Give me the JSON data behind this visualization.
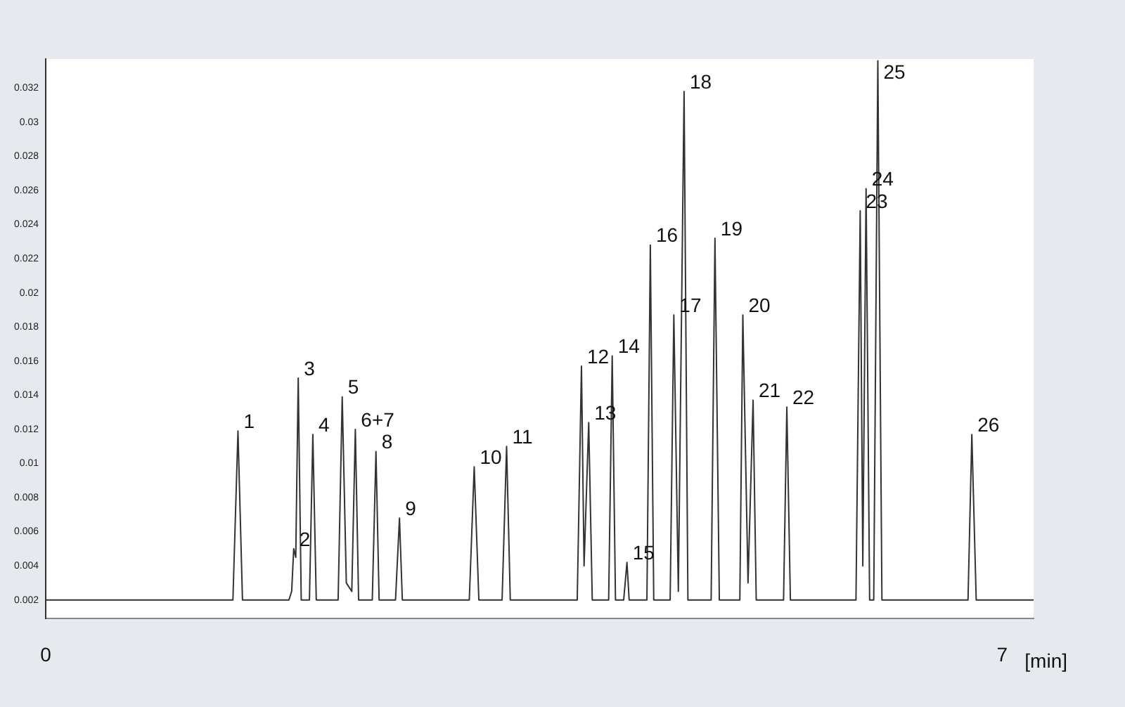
{
  "chart_data": {
    "type": "line",
    "xlabel": "[min]",
    "x": [
      0,
      1.37,
      1.407,
      1.44,
      1.78,
      1.8,
      1.815,
      1.83,
      1.848,
      1.87,
      1.93,
      1.955,
      1.98,
      2.14,
      2.17,
      2.2,
      2.24,
      2.266,
      2.29,
      2.39,
      2.417,
      2.44,
      2.56,
      2.589,
      2.61,
      3.1,
      3.136,
      3.17,
      3.34,
      3.373,
      3.4,
      3.89,
      3.921,
      3.94,
      3.974,
      4.0,
      4.12,
      4.146,
      4.17,
      4.23,
      4.254,
      4.27,
      4.4,
      4.425,
      4.45,
      4.57,
      4.597,
      4.63,
      4.672,
      4.7,
      4.87,
      4.898,
      4.93,
      5.08,
      5.102,
      5.14,
      5.177,
      5.2,
      5.4,
      5.424,
      5.45,
      5.93,
      5.961,
      5.98,
      6.004,
      6.03,
      6.06,
      6.09,
      6.12,
      6.75,
      6.778,
      6.81,
      7.23
    ],
    "series": [
      {
        "color": "#333333",
        "values": [
          0.002,
          0.002,
          0.0119,
          0.002,
          0.002,
          0.0025,
          0.005,
          0.0045,
          0.015,
          0.002,
          0.002,
          0.0117,
          0.002,
          0.002,
          0.0139,
          0.003,
          0.0025,
          0.012,
          0.002,
          0.002,
          0.0107,
          0.002,
          0.002,
          0.0068,
          0.002,
          0.002,
          0.0098,
          0.002,
          0.002,
          0.011,
          0.002,
          0.002,
          0.0157,
          0.004,
          0.0124,
          0.002,
          0.002,
          0.0163,
          0.002,
          0.002,
          0.0042,
          0.002,
          0.002,
          0.0228,
          0.002,
          0.002,
          0.0187,
          0.0025,
          0.0318,
          0.002,
          0.002,
          0.0232,
          0.002,
          0.002,
          0.0187,
          0.003,
          0.0137,
          0.002,
          0.002,
          0.0133,
          0.002,
          0.002,
          0.0248,
          0.004,
          0.0261,
          0.002,
          0.002,
          0.0336,
          0.002,
          0.002,
          0.0117,
          0.002,
          0.002
        ]
      }
    ],
    "xlim": [
      0,
      7.23
    ],
    "xticks": [
      0,
      7
    ],
    "ylim": [
      0.0009,
      0.0337
    ],
    "yticks": [
      0.002,
      0.004,
      0.006,
      0.008,
      0.01,
      0.012,
      0.014,
      0.016,
      0.018,
      0.02,
      0.022,
      0.024,
      0.026,
      0.028,
      0.03,
      0.032
    ],
    "grid": false,
    "legend": false,
    "marker": "none",
    "line_style": "solid",
    "annotations": [
      {
        "text": "1",
        "x": 1.407,
        "y": 0.0119
      },
      {
        "text": "2",
        "x": 1.815,
        "y": 0.005
      },
      {
        "text": "3",
        "x": 1.848,
        "y": 0.015
      },
      {
        "text": "4",
        "x": 1.955,
        "y": 0.0117
      },
      {
        "text": "5",
        "x": 2.17,
        "y": 0.0139
      },
      {
        "text": "6+7",
        "x": 2.266,
        "y": 0.012
      },
      {
        "text": "8",
        "x": 2.417,
        "y": 0.0107
      },
      {
        "text": "9",
        "x": 2.589,
        "y": 0.0068
      },
      {
        "text": "10",
        "x": 3.136,
        "y": 0.0098
      },
      {
        "text": "11",
        "x": 3.373,
        "y": 0.011
      },
      {
        "text": "12",
        "x": 3.921,
        "y": 0.0157
      },
      {
        "text": "13",
        "x": 3.974,
        "y": 0.0124
      },
      {
        "text": "14",
        "x": 4.146,
        "y": 0.0163
      },
      {
        "text": "15",
        "x": 4.254,
        "y": 0.0042
      },
      {
        "text": "16",
        "x": 4.425,
        "y": 0.0228
      },
      {
        "text": "17",
        "x": 4.597,
        "y": 0.0187
      },
      {
        "text": "18",
        "x": 4.672,
        "y": 0.0318
      },
      {
        "text": "19",
        "x": 4.898,
        "y": 0.0232
      },
      {
        "text": "20",
        "x": 5.102,
        "y": 0.0187
      },
      {
        "text": "21",
        "x": 5.177,
        "y": 0.0137
      },
      {
        "text": "22",
        "x": 5.424,
        "y": 0.0133
      },
      {
        "text": "23",
        "x": 5.961,
        "y": 0.0248
      },
      {
        "text": "24",
        "x": 6.004,
        "y": 0.0261
      },
      {
        "text": "25",
        "x": 6.09,
        "y": 0.0336
      },
      {
        "text": "26",
        "x": 6.778,
        "y": 0.0117
      }
    ]
  }
}
